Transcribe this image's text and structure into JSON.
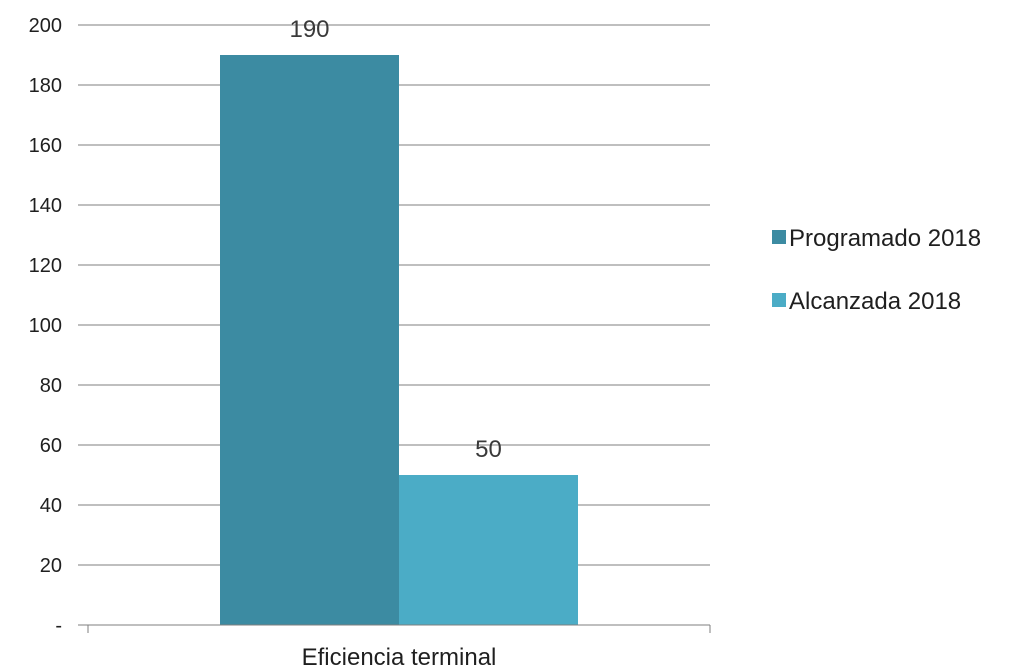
{
  "chart_data": {
    "type": "bar",
    "categories": [
      "Eficiencia terminal"
    ],
    "series": [
      {
        "name": "Programado 2018",
        "values": [
          190
        ],
        "color": "#3C8BA2"
      },
      {
        "name": "Alcanzada 2018",
        "values": [
          50
        ],
        "color": "#4BACC6"
      }
    ],
    "ylim": [
      0,
      200
    ],
    "y_ticks": [
      0,
      20,
      40,
      60,
      80,
      100,
      120,
      140,
      160,
      180,
      200
    ],
    "y_tick_labels": [
      "-",
      "20",
      "40",
      "60",
      "80",
      "100",
      "120",
      "140",
      "160",
      "180",
      "200"
    ],
    "data_labels": [
      "190",
      "50"
    ],
    "grid": true,
    "legend_position": "right",
    "gridline_color": "#7f7f7f",
    "axis_color": "#7f7f7f"
  }
}
